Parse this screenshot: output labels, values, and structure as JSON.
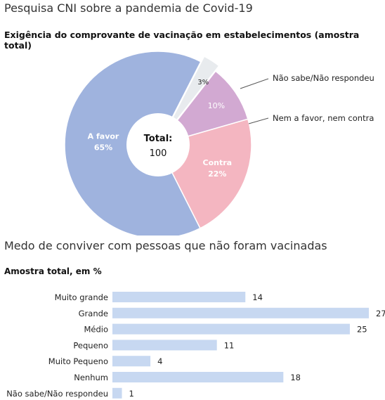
{
  "header": {
    "title": "Pesquisa CNI sobre a pandemia de Covid-19",
    "pie_subtitle": "Exigência do comprovante de vacinação em estabelecimentos (amostra total)",
    "bar_title": "Medo de conviver com pessoas que não foram vacinadas",
    "bar_subtitle": "Amostra total, em %"
  },
  "chart_data": [
    {
      "type": "pie",
      "title": "Exigência do comprovante de vacinação em estabelecimentos (amostra total)",
      "center_label": "Total:",
      "center_value": "100",
      "slices": [
        {
          "label": "A favor",
          "value": 65,
          "display": "65%",
          "color": "#9fb3de"
        },
        {
          "label": "Contra",
          "value": 22,
          "display": "22%",
          "color": "#f4b6c1"
        },
        {
          "label": "Nem a favor, nem contra",
          "value": 10,
          "display": "10%",
          "color": "#d2a9d2"
        },
        {
          "label": "Não sabe/Não respondeu",
          "value": 3,
          "display": "3%",
          "color": "#e8ebee"
        }
      ]
    },
    {
      "type": "bar",
      "orientation": "horizontal",
      "title": "Medo de conviver com pessoas que não foram vacinadas",
      "subtitle": "Amostra total, em %",
      "categories": [
        "Muito grande",
        "Grande",
        "Médio",
        "Pequeno",
        "Muito Pequeno",
        "Nenhum",
        "Não sabe/Não respondeu"
      ],
      "values": [
        14,
        27,
        25,
        11,
        4,
        18,
        1
      ],
      "color": "#c7d8f1",
      "xlim": [
        0,
        27
      ]
    }
  ]
}
